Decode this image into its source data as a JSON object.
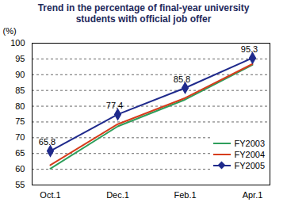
{
  "chart_data": {
    "type": "line",
    "title": "Trend in the percentage of final-year university students with official job offer",
    "y_label": "(%)",
    "categories": [
      "Oct.1",
      "Dec.1",
      "Feb.1",
      "Apr.1"
    ],
    "series": [
      {
        "name": "FY2003",
        "color": "#2e9e5b",
        "values": [
          60.2,
          73.6,
          82.1,
          93.1
        ]
      },
      {
        "name": "FY2004",
        "color": "#d63c1c",
        "values": [
          61.3,
          74.3,
          82.6,
          93.4
        ]
      },
      {
        "name": "FY2005",
        "color": "#1f2a8c",
        "marker": "diamond",
        "data_labels": true,
        "values": [
          65.8,
          77.4,
          85.8,
          95.3
        ]
      }
    ],
    "ylim": [
      55,
      100
    ],
    "yticks": [
      55,
      60,
      65,
      70,
      75,
      80,
      85,
      90,
      95,
      100
    ],
    "grid": true,
    "legend": "lower right"
  }
}
